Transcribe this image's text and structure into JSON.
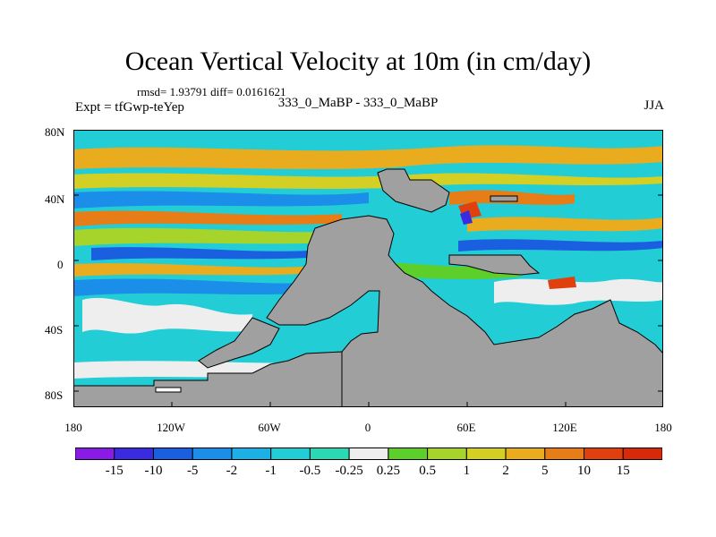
{
  "title": "Ocean Vertical Velocity at 10m (in cm/day)",
  "stats": "rmsd= 1.93791 diff= 0.0161621",
  "experiment": "Expt = tfGwp-teYep",
  "comparison": "333_0_MaBP - 333_0_MaBP",
  "season": "JJA",
  "y_ticks": [
    "80N",
    "40N",
    "0",
    "40S",
    "80S"
  ],
  "x_ticks": [
    "180",
    "120W",
    "60W",
    "0",
    "60E",
    "120E",
    "180"
  ],
  "colorbar": {
    "labels": [
      "-15",
      "-10",
      "-5",
      "-2",
      "-1",
      "-0.5",
      "-0.25",
      "0.25",
      "0.5",
      "1",
      "2",
      "5",
      "10",
      "15"
    ],
    "colors": [
      "#8a1be6",
      "#3a2ae0",
      "#1a5fe0",
      "#1a8ee8",
      "#1bb0e6",
      "#22cdd6",
      "#2ad9b4",
      "#eeeeee",
      "#5ccf2a",
      "#a6d42a",
      "#d4cf24",
      "#e8ac1e",
      "#e67d16",
      "#e0400e"
    ]
  },
  "land_color": "#a0a0a0",
  "ocean_base_color": "#22cdd6"
}
